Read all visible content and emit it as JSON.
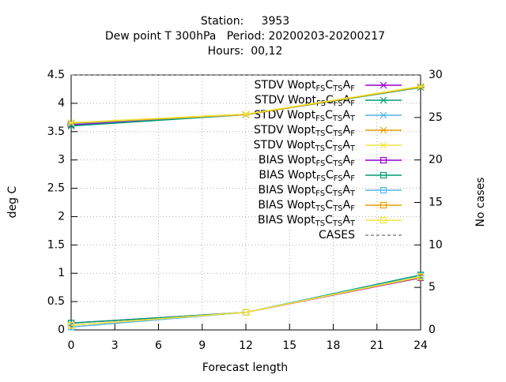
{
  "chart_data": {
    "type": "line",
    "title": [
      "Station:     3953",
      "Dew point T 300hPa   Period: 20200203-20200217",
      "Hours:  00,12"
    ],
    "xlabel": "Forecast length",
    "ylabel": "deg C",
    "y2label": "No cases",
    "x": [
      0,
      12,
      24
    ],
    "xlim": [
      0,
      24
    ],
    "xticks": [
      0,
      3,
      6,
      9,
      12,
      15,
      18,
      21,
      24
    ],
    "ylim": [
      0,
      4.5
    ],
    "yticks": [
      0,
      0.5,
      1,
      1.5,
      2,
      2.5,
      3,
      3.5,
      4,
      4.5
    ],
    "y2lim": [
      0,
      30
    ],
    "y2ticks": [
      0,
      5,
      10,
      15,
      20,
      25,
      30
    ],
    "grid": true,
    "legend": "top-right",
    "series": [
      {
        "name": "STDV Wopt_{FS}C_{TS}A_{F}",
        "color": "#9400d3",
        "marker": "x",
        "values": [
          3.62,
          3.8,
          4.29
        ]
      },
      {
        "name": "STDV Wopt_{FS}C_{FS}A_{F}",
        "color": "#009e73",
        "marker": "x",
        "values": [
          3.6,
          3.8,
          4.28
        ]
      },
      {
        "name": "STDV Wopt_{FS}C_{TS}A_{T}",
        "color": "#56b4e9",
        "marker": "x",
        "values": [
          3.64,
          3.8,
          4.3
        ]
      },
      {
        "name": "STDV Wopt_{TS}C_{TS}A_{F}",
        "color": "#e69f00",
        "marker": "x",
        "values": [
          3.65,
          3.8,
          4.29
        ]
      },
      {
        "name": "STDV Wopt_{TS}C_{TS}A_{T}",
        "color": "#f0e442",
        "marker": "x",
        "values": [
          3.66,
          3.81,
          4.3
        ]
      },
      {
        "name": "BIAS Wopt_{FS}C_{TS}A_{F}",
        "color": "#9400d3",
        "marker": "square",
        "values": [
          0.12,
          0.31,
          0.92
        ]
      },
      {
        "name": "BIAS Wopt_{FS}C_{FS}A_{F}",
        "color": "#009e73",
        "marker": "square",
        "values": [
          0.12,
          0.31,
          0.97
        ]
      },
      {
        "name": "BIAS Wopt_{FS}C_{TS}A_{T}",
        "color": "#56b4e9",
        "marker": "square",
        "values": [
          0.05,
          0.31,
          0.95
        ]
      },
      {
        "name": "BIAS Wopt_{TS}C_{TS}A_{F}",
        "color": "#e69f00",
        "marker": "square",
        "values": [
          0.08,
          0.31,
          0.93
        ]
      },
      {
        "name": "BIAS Wopt_{TS}C_{TS}A_{T}",
        "color": "#f0e442",
        "marker": "square",
        "values": [
          0.08,
          0.31,
          0.94
        ]
      },
      {
        "name": "CASES",
        "color": "#888888",
        "marker": "none",
        "dash": true,
        "axis": "y2",
        "values": [
          30,
          30,
          30
        ]
      }
    ]
  }
}
